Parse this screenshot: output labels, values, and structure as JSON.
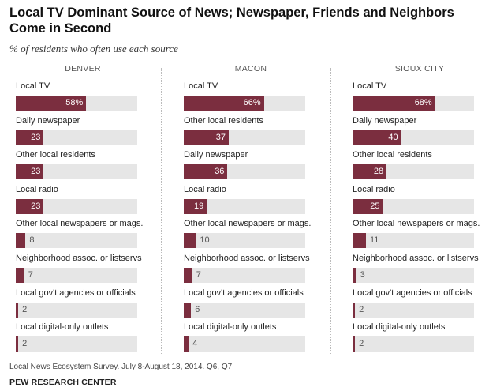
{
  "title": "Local TV Dominant Source of News; Newspaper, Friends and Neighbors Come in Second",
  "subtitle": "% of residents who often use each source",
  "footnote": "Local News Ecosystem Survey. July 8-August 18, 2014. Q6, Q7.",
  "credit": "PEW RESEARCH CENTER",
  "colors": {
    "bar": "#7b2e3f",
    "track": "#e6e6e6"
  },
  "chart_data": [
    {
      "type": "bar",
      "title": "DENVER",
      "xlim": [
        0,
        100
      ],
      "categories": [
        "Local TV",
        "Daily newspaper",
        "Other local residents",
        "Local radio",
        "Other local newspapers or mags.",
        "Neighborhood assoc. or listservs",
        "Local gov't agencies or officials",
        "Local digital-only outlets"
      ],
      "values": [
        58,
        23,
        23,
        23,
        8,
        7,
        2,
        2
      ],
      "labels": [
        "58%",
        "23",
        "23",
        "23",
        "8",
        "7",
        "2",
        "2"
      ]
    },
    {
      "type": "bar",
      "title": "MACON",
      "xlim": [
        0,
        100
      ],
      "categories": [
        "Local TV",
        "Other local residents",
        "Daily newspaper",
        "Local radio",
        "Other local newspapers or mags.",
        "Neighborhood assoc. or listservs",
        "Local gov't agencies or officials",
        "Local digital-only outlets"
      ],
      "values": [
        66,
        37,
        36,
        19,
        10,
        7,
        6,
        4
      ],
      "labels": [
        "66%",
        "37",
        "36",
        "19",
        "10",
        "7",
        "6",
        "4"
      ]
    },
    {
      "type": "bar",
      "title": "SIOUX CITY",
      "xlim": [
        0,
        100
      ],
      "categories": [
        "Local TV",
        "Daily newspaper",
        "Other local residents",
        "Local radio",
        "Other local newspapers or mags.",
        "Neighborhood assoc. or listservs",
        "Local gov't agencies or officials",
        "Local digital-only outlets"
      ],
      "values": [
        68,
        40,
        28,
        25,
        11,
        3,
        2,
        2
      ],
      "labels": [
        "68%",
        "40",
        "28",
        "25",
        "11",
        "3",
        "2",
        "2"
      ]
    }
  ]
}
